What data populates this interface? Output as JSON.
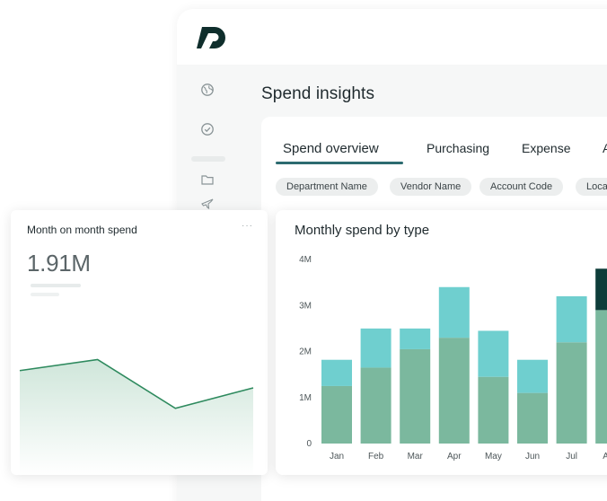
{
  "app": {
    "page_title": "Spend insights",
    "rail_icons": [
      "globe-icon",
      "check-circle-icon",
      "folder-icon",
      "airplane-icon"
    ]
  },
  "tabs": [
    {
      "label": "Spend overview",
      "active": true
    },
    {
      "label": "Purchasing",
      "active": false
    },
    {
      "label": "Expense",
      "active": false
    },
    {
      "label": "A",
      "active": false
    }
  ],
  "filters": [
    "Department Name",
    "Vendor Name",
    "Account Code",
    "Loca"
  ],
  "mom_card": {
    "title": "Month on month spend",
    "menu": "···",
    "value": "1.91M",
    "trend": [
      0.55,
      0.62,
      0.31,
      0.44
    ]
  },
  "colors": {
    "brand": "#0f2e2c",
    "accent": "#2c6b70",
    "bar_base": "#7bb89e",
    "bar_top": "#6fcfcf",
    "bar_extra": "#0e3d3a",
    "area_line": "#2e8a5e"
  },
  "chart_data": {
    "type": "bar",
    "title": "Monthly spend by type",
    "categories": [
      "Jan",
      "Feb",
      "Mar",
      "Apr",
      "May",
      "Jun",
      "Jul",
      "Aug"
    ],
    "y_ticks": [
      "0",
      "1M",
      "2M",
      "3M",
      "4M"
    ],
    "ylim": [
      0,
      4
    ],
    "stacked": true,
    "series": [
      {
        "values": [
          1.25,
          1.65,
          2.05,
          2.3,
          1.45,
          1.1,
          2.2,
          2.9
        ]
      },
      {
        "values": [
          0.57,
          0.85,
          0.45,
          1.1,
          1.0,
          0.72,
          1.0,
          0.0
        ]
      },
      {
        "values": [
          0,
          0,
          0,
          0,
          0,
          0,
          0,
          0.9
        ]
      }
    ]
  }
}
